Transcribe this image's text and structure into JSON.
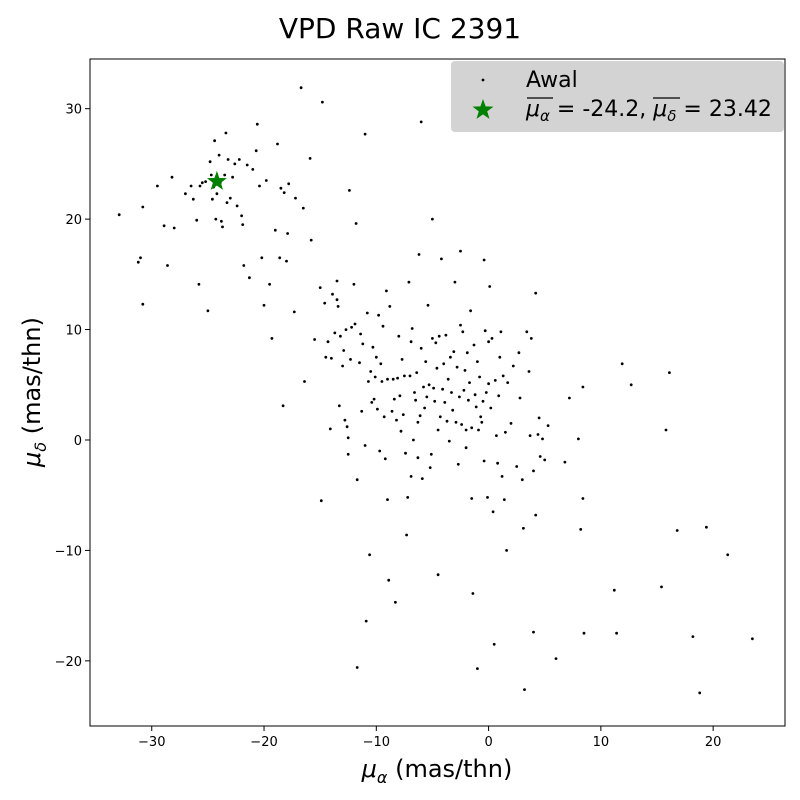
{
  "chart_data": {
    "type": "scatter",
    "title": "VPD Raw IC 2391",
    "xlabel": {
      "symbol": "μ",
      "sub": "α",
      "unit": " (mas/thn)"
    },
    "ylabel": {
      "symbol": "μ",
      "sub": "δ",
      "unit": " (mas/thn)"
    },
    "xlim": [
      -35.5,
      26.4
    ],
    "ylim": [
      -25.9,
      34.5
    ],
    "xticks": [
      -30,
      -20,
      -10,
      0,
      10,
      20
    ],
    "yticks": [
      -20,
      -10,
      0,
      10,
      20,
      30
    ],
    "xtick_labels": [
      "−30",
      "−20",
      "−10",
      "0",
      "10",
      "20"
    ],
    "ytick_labels": [
      "−20",
      "−10",
      "0",
      "10",
      "20",
      "30"
    ],
    "grid": false,
    "legend_position": "top-right",
    "colors": {
      "points": "#000000",
      "mean": "#008000",
      "legend_bg": "#d3d3d3"
    },
    "series": [
      {
        "name": "Awal",
        "marker": "dot",
        "points": [
          [
            -32.9,
            20.4
          ],
          [
            -31.2,
            16.1
          ],
          [
            -31.0,
            16.5
          ],
          [
            -30.8,
            21.1
          ],
          [
            -30.8,
            12.3
          ],
          [
            -29.5,
            23.0
          ],
          [
            -28.9,
            19.4
          ],
          [
            -28.6,
            15.8
          ],
          [
            -28.2,
            23.8
          ],
          [
            -28.0,
            19.2
          ],
          [
            -27.0,
            22.3
          ],
          [
            -26.5,
            23.0
          ],
          [
            -26.3,
            21.8
          ],
          [
            -26.0,
            19.9
          ],
          [
            -25.8,
            14.1
          ],
          [
            -25.7,
            23.0
          ],
          [
            -25.5,
            23.3
          ],
          [
            -25.2,
            23.4
          ],
          [
            -25.0,
            11.7
          ],
          [
            -24.8,
            25.2
          ],
          [
            -24.7,
            24.0
          ],
          [
            -24.6,
            21.8
          ],
          [
            -24.5,
            22.9
          ],
          [
            -24.4,
            27.1
          ],
          [
            -24.3,
            20.0
          ],
          [
            -24.2,
            22.3
          ],
          [
            -24.0,
            25.8
          ],
          [
            -23.9,
            23.3
          ],
          [
            -23.8,
            19.8
          ],
          [
            -23.7,
            19.3
          ],
          [
            -23.5,
            24.0
          ],
          [
            -23.4,
            27.8
          ],
          [
            -23.3,
            21.5
          ],
          [
            -23.2,
            25.4
          ],
          [
            -23.0,
            21.9
          ],
          [
            -22.8,
            23.8
          ],
          [
            -22.6,
            25.0
          ],
          [
            -22.4,
            21.2
          ],
          [
            -22.2,
            25.4
          ],
          [
            -22.0,
            20.3
          ],
          [
            -21.9,
            19.5
          ],
          [
            -21.8,
            15.8
          ],
          [
            -21.5,
            24.9
          ],
          [
            -21.3,
            14.7
          ],
          [
            -21.0,
            24.5
          ],
          [
            -20.7,
            26.2
          ],
          [
            -20.6,
            28.6
          ],
          [
            -20.4,
            23.0
          ],
          [
            -20.2,
            16.5
          ],
          [
            -20.0,
            12.2
          ],
          [
            -19.8,
            23.5
          ],
          [
            -19.5,
            14.1
          ],
          [
            -19.3,
            9.2
          ],
          [
            -19.0,
            19.0
          ],
          [
            -18.8,
            26.8
          ],
          [
            -18.6,
            16.5
          ],
          [
            -18.5,
            22.8
          ],
          [
            -18.3,
            3.1
          ],
          [
            -18.2,
            22.4
          ],
          [
            -18.0,
            16.2
          ],
          [
            -17.9,
            18.7
          ],
          [
            -17.8,
            23.2
          ],
          [
            -17.3,
            11.6
          ],
          [
            -17.2,
            21.9
          ],
          [
            -16.7,
            31.9
          ],
          [
            -16.5,
            21.0
          ],
          [
            -16.4,
            5.3
          ],
          [
            -15.9,
            25.5
          ],
          [
            -15.8,
            18.1
          ],
          [
            -15.5,
            9.1
          ],
          [
            -15.0,
            13.8
          ],
          [
            -14.9,
            -5.5
          ],
          [
            -14.8,
            30.6
          ],
          [
            -14.6,
            12.4
          ],
          [
            -14.5,
            7.5
          ],
          [
            -14.3,
            8.9
          ],
          [
            -14.1,
            1.0
          ],
          [
            -14.0,
            7.4
          ],
          [
            -13.9,
            13.2
          ],
          [
            -13.7,
            9.7
          ],
          [
            -13.5,
            14.4
          ],
          [
            -13.5,
            12.7
          ],
          [
            -13.4,
            12.1
          ],
          [
            -13.3,
            3.1
          ],
          [
            -13.2,
            9.4
          ],
          [
            -13.0,
            6.7
          ],
          [
            -12.9,
            8.1
          ],
          [
            -12.8,
            1.8
          ],
          [
            -12.7,
            10.0
          ],
          [
            -12.6,
            1.2
          ],
          [
            -12.5,
            0.2
          ],
          [
            -12.5,
            -1.3
          ],
          [
            -12.4,
            22.6
          ],
          [
            -12.3,
            7.3
          ],
          [
            -12.2,
            10.2
          ],
          [
            -12.0,
            14.1
          ],
          [
            -11.9,
            10.5
          ],
          [
            -11.8,
            19.6
          ],
          [
            -11.7,
            -3.6
          ],
          [
            -11.7,
            -20.6
          ],
          [
            -11.5,
            7.0
          ],
          [
            -11.4,
            9.6
          ],
          [
            -11.3,
            2.6
          ],
          [
            -11.2,
            8.7
          ],
          [
            -11.0,
            -0.5
          ],
          [
            -11.0,
            27.7
          ],
          [
            -10.9,
            -16.4
          ],
          [
            -10.8,
            11.5
          ],
          [
            -10.7,
            5.3
          ],
          [
            -10.6,
            -10.4
          ],
          [
            -10.5,
            6.2
          ],
          [
            -10.4,
            3.4
          ],
          [
            -10.3,
            8.4
          ],
          [
            -10.2,
            3.7
          ],
          [
            -10.1,
            5.7
          ],
          [
            -10.0,
            7.5
          ],
          [
            -9.9,
            2.8
          ],
          [
            -9.8,
            11.3
          ],
          [
            -9.7,
            -1.0
          ],
          [
            -9.6,
            6.9
          ],
          [
            -9.5,
            5.3
          ],
          [
            -9.4,
            10.3
          ],
          [
            -9.3,
            2.1
          ],
          [
            -9.2,
            -1.7
          ],
          [
            -9.1,
            13.5
          ],
          [
            -9.0,
            5.5
          ],
          [
            -9.0,
            -5.4
          ],
          [
            -8.9,
            -12.7
          ],
          [
            -8.8,
            12.1
          ],
          [
            -8.6,
            2.6
          ],
          [
            -8.5,
            5.5
          ],
          [
            -8.4,
            3.7
          ],
          [
            -8.3,
            -14.7
          ],
          [
            -8.2,
            1.8
          ],
          [
            -8.1,
            5.6
          ],
          [
            -8.0,
            9.4
          ],
          [
            -7.9,
            4.0
          ],
          [
            -7.8,
            0.8
          ],
          [
            -7.7,
            7.3
          ],
          [
            -7.6,
            2.3
          ],
          [
            -7.5,
            5.8
          ],
          [
            -7.4,
            -1.2
          ],
          [
            -7.3,
            -8.6
          ],
          [
            -7.2,
            -5.2
          ],
          [
            -7.1,
            14.3
          ],
          [
            -7.0,
            5.8
          ],
          [
            -6.9,
            8.9
          ],
          [
            -6.9,
            -3.3
          ],
          [
            -6.8,
            10.1
          ],
          [
            -6.7,
            0.0
          ],
          [
            -6.6,
            4.3
          ],
          [
            -6.5,
            3.6
          ],
          [
            -6.4,
            6.1
          ],
          [
            -6.3,
            1.6
          ],
          [
            -6.3,
            -1.6
          ],
          [
            -6.2,
            16.8
          ],
          [
            -6.1,
            2.2
          ],
          [
            -6.0,
            28.8
          ],
          [
            -6.0,
            8.3
          ],
          [
            -5.9,
            -3.5
          ],
          [
            -5.8,
            4.8
          ],
          [
            -5.7,
            2.9
          ],
          [
            -5.6,
            7.1
          ],
          [
            -5.5,
            3.9
          ],
          [
            -5.4,
            12.2
          ],
          [
            -5.3,
            5.0
          ],
          [
            -5.2,
            -2.5
          ],
          [
            -5.1,
            -1.3
          ],
          [
            -5.0,
            9.2
          ],
          [
            -5.0,
            20.0
          ],
          [
            -4.9,
            4.7
          ],
          [
            -4.8,
            3.5
          ],
          [
            -4.7,
            8.8
          ],
          [
            -4.6,
            6.5
          ],
          [
            -4.5,
            0.9
          ],
          [
            -4.5,
            -12.2
          ],
          [
            -4.4,
            9.4
          ],
          [
            -4.3,
            2.1
          ],
          [
            -4.2,
            16.4
          ],
          [
            -4.1,
            4.6
          ],
          [
            -4.0,
            6.9
          ],
          [
            -3.9,
            3.4
          ],
          [
            -3.8,
            9.5
          ],
          [
            -3.7,
            1.7
          ],
          [
            -3.6,
            5.5
          ],
          [
            -3.5,
            -0.1
          ],
          [
            -3.4,
            7.5
          ],
          [
            -3.3,
            4.3
          ],
          [
            -3.2,
            2.7
          ],
          [
            -3.1,
            8.0
          ],
          [
            -3.0,
            14.3
          ],
          [
            -2.9,
            1.6
          ],
          [
            -2.8,
            6.6
          ],
          [
            -2.7,
            -2.2
          ],
          [
            -2.6,
            3.9
          ],
          [
            -2.5,
            10.4
          ],
          [
            -2.5,
            17.1
          ],
          [
            -2.4,
            1.4
          ],
          [
            -2.3,
            9.8
          ],
          [
            -2.2,
            4.5
          ],
          [
            -2.1,
            6.3
          ],
          [
            -2.0,
            0.9
          ],
          [
            -2.0,
            -0.7
          ],
          [
            -1.9,
            7.9
          ],
          [
            -1.8,
            3.6
          ],
          [
            -1.7,
            5.2
          ],
          [
            -1.6,
            11.7
          ],
          [
            -1.5,
            1.1
          ],
          [
            -1.5,
            -5.3
          ],
          [
            -1.4,
            -13.9
          ],
          [
            -1.3,
            8.6
          ],
          [
            -1.2,
            4.1
          ],
          [
            -1.1,
            3.0
          ],
          [
            -1.0,
            7.1
          ],
          [
            -1.0,
            -20.7
          ],
          [
            -0.9,
            0.9
          ],
          [
            -0.8,
            5.7
          ],
          [
            -0.7,
            2.1
          ],
          [
            -0.6,
            1.6
          ],
          [
            -0.5,
            3.5
          ],
          [
            -0.4,
            16.3
          ],
          [
            -0.4,
            -1.9
          ],
          [
            -0.3,
            9.9
          ],
          [
            -0.2,
            4.3
          ],
          [
            -0.1,
            -5.2
          ],
          [
            0.0,
            8.9
          ],
          [
            0.0,
            5.1
          ],
          [
            0.1,
            13.9
          ],
          [
            0.2,
            2.9
          ],
          [
            0.3,
            9.2
          ],
          [
            0.4,
            -6.5
          ],
          [
            0.5,
            -18.5
          ],
          [
            0.6,
            5.4
          ],
          [
            0.7,
            0.4
          ],
          [
            0.8,
            -2.1
          ],
          [
            0.9,
            4.0
          ],
          [
            1.0,
            7.5
          ],
          [
            1.1,
            9.8
          ],
          [
            1.2,
            -3.3
          ],
          [
            1.3,
            5.8
          ],
          [
            1.4,
            -5.4
          ],
          [
            1.5,
            0.7
          ],
          [
            1.6,
            -10.0
          ],
          [
            1.7,
            5.2
          ],
          [
            2.0,
            1.5
          ],
          [
            2.2,
            6.7
          ],
          [
            2.5,
            -2.4
          ],
          [
            2.7,
            7.9
          ],
          [
            2.8,
            3.8
          ],
          [
            3.0,
            -3.6
          ],
          [
            3.1,
            -8.0
          ],
          [
            3.2,
            -22.6
          ],
          [
            3.4,
            9.8
          ],
          [
            3.6,
            6.2
          ],
          [
            3.7,
            0.4
          ],
          [
            3.8,
            9.2
          ],
          [
            4.0,
            -2.8
          ],
          [
            4.0,
            -17.4
          ],
          [
            4.2,
            -6.8
          ],
          [
            4.2,
            13.3
          ],
          [
            4.4,
            0.5
          ],
          [
            4.5,
            2.0
          ],
          [
            4.6,
            -1.5
          ],
          [
            4.8,
            0.1
          ],
          [
            5.0,
            -1.8
          ],
          [
            5.3,
            1.3
          ],
          [
            6.0,
            -19.8
          ],
          [
            6.8,
            -2.0
          ],
          [
            7.2,
            3.8
          ],
          [
            8.0,
            0.1
          ],
          [
            8.2,
            -8.1
          ],
          [
            8.4,
            4.8
          ],
          [
            8.4,
            -5.3
          ],
          [
            8.5,
            -17.5
          ],
          [
            11.2,
            -13.6
          ],
          [
            11.4,
            -17.5
          ],
          [
            11.9,
            6.9
          ],
          [
            12.7,
            5.0
          ],
          [
            15.4,
            -13.3
          ],
          [
            15.8,
            0.9
          ],
          [
            16.1,
            6.1
          ],
          [
            16.8,
            -8.2
          ],
          [
            18.2,
            -17.8
          ],
          [
            18.8,
            -22.9
          ],
          [
            19.4,
            -7.9
          ],
          [
            21.3,
            -10.4
          ],
          [
            23.5,
            -18.0
          ]
        ]
      },
      {
        "name": "μα = -24.2, μδ = 23.42",
        "marker": "star",
        "points": [
          [
            -24.2,
            23.42
          ]
        ]
      }
    ],
    "legend": {
      "entries": [
        {
          "kind": "text",
          "label": "Awal"
        },
        {
          "kind": "math",
          "sym1": "μ",
          "sub1": "α",
          "val1": "-24.2",
          "sym2": "μ",
          "sub2": "δ",
          "val2": "23.42"
        }
      ]
    }
  }
}
